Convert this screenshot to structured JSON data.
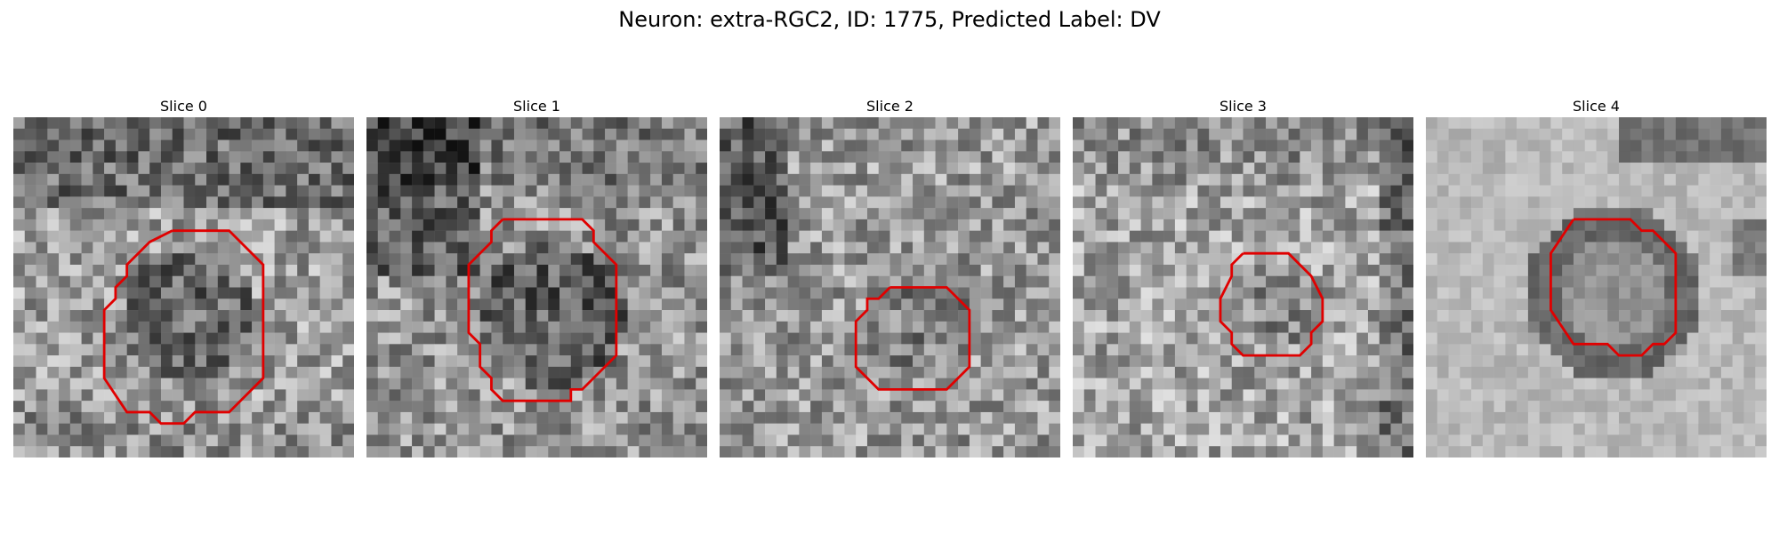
{
  "figure": {
    "title": "Neuron: extra-RGC2, ID: 1775, Predicted Label: DV",
    "outline_color": "#e00000"
  },
  "panels": [
    {
      "title": "Slice 0",
      "pattern": "ring-dark-top",
      "outline": "large-lower"
    },
    {
      "title": "Slice 1",
      "pattern": "dark-left",
      "outline": "large-center"
    },
    {
      "title": "Slice 2",
      "pattern": "noisy",
      "outline": "medium-low"
    },
    {
      "title": "Slice 3",
      "pattern": "noisy-light",
      "outline": "small-center"
    },
    {
      "title": "Slice 4",
      "pattern": "smooth-ring",
      "outline": "medium-right"
    }
  ]
}
